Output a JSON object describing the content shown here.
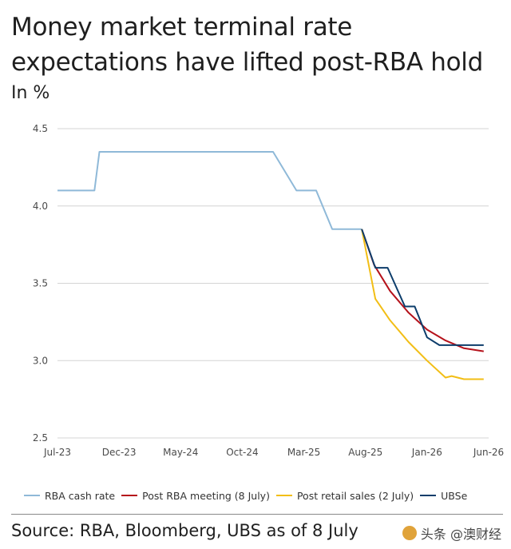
{
  "header": {
    "title": "Money market terminal rate expectations have lifted post-RBA hold",
    "subtitle": "In %"
  },
  "footer": {
    "source": "Source: RBA, Bloomberg, UBS as of 8 July",
    "watermark": "头条 @澳财经"
  },
  "colors": {
    "rba_cash_rate": "#8fb9d8",
    "post_rba_meeting": "#b5121b",
    "post_retail_sales": "#f2be16",
    "ubse": "#0d3d6b",
    "grid": "#d4d4d4",
    "axis_text": "#4a4a4a"
  },
  "chart_data": {
    "type": "line",
    "title": "Money market terminal rate expectations have lifted post-RBA hold",
    "ylabel": "In %",
    "xlabel": "",
    "ylim": [
      2.5,
      4.5
    ],
    "yticks": [
      "2.5",
      "3.0",
      "3.5",
      "4.0",
      "4.5"
    ],
    "ytick_values": [
      2.5,
      3.0,
      3.5,
      4.0,
      4.5
    ],
    "xticks": [
      "Jul-23",
      "Dec-23",
      "May-24",
      "Oct-24",
      "Mar-25",
      "Aug-25",
      "Jan-26",
      "Jun-26"
    ],
    "xtick_months": [
      0,
      5,
      10,
      15,
      20,
      25,
      30,
      35
    ],
    "x_units": "months since Jul-23",
    "xlim": [
      0,
      35
    ],
    "grid": "horizontal",
    "legend_position": "bottom",
    "series": [
      {
        "name": "RBA cash rate",
        "color_key": "rba_cash_rate",
        "x": [
          0,
          3.0,
          3.4,
          13.0,
          17.5,
          19.4,
          21.0,
          22.3,
          22.9,
          24.7
        ],
        "y": [
          4.1,
          4.1,
          4.35,
          4.35,
          4.35,
          4.1,
          4.1,
          3.85,
          3.85,
          3.85
        ]
      },
      {
        "name": "Post RBA meeting (8 July)",
        "color_key": "post_rba_meeting",
        "x": [
          24.7,
          25.7,
          27.0,
          28.5,
          30.0,
          31.5,
          33.0,
          34.6
        ],
        "y": [
          3.85,
          3.62,
          3.45,
          3.31,
          3.2,
          3.13,
          3.08,
          3.06
        ]
      },
      {
        "name": "Post retail sales (2 July)",
        "color_key": "post_retail_sales",
        "x": [
          24.7,
          25.8,
          27.0,
          28.5,
          30.0,
          31.5,
          32.0,
          33.0,
          34.0,
          34.6
        ],
        "y": [
          3.85,
          3.4,
          3.26,
          3.12,
          3.0,
          2.89,
          2.9,
          2.88,
          2.88,
          2.88
        ],
        "note": "final point ~2.88"
      },
      {
        "name": "UBSe",
        "color_key": "ubse",
        "x": [
          24.7,
          25.8,
          26.8,
          28.2,
          29.0,
          30.0,
          31.0,
          32.5,
          34.6
        ],
        "y": [
          3.85,
          3.6,
          3.6,
          3.35,
          3.35,
          3.15,
          3.1,
          3.1,
          3.1
        ]
      }
    ]
  }
}
